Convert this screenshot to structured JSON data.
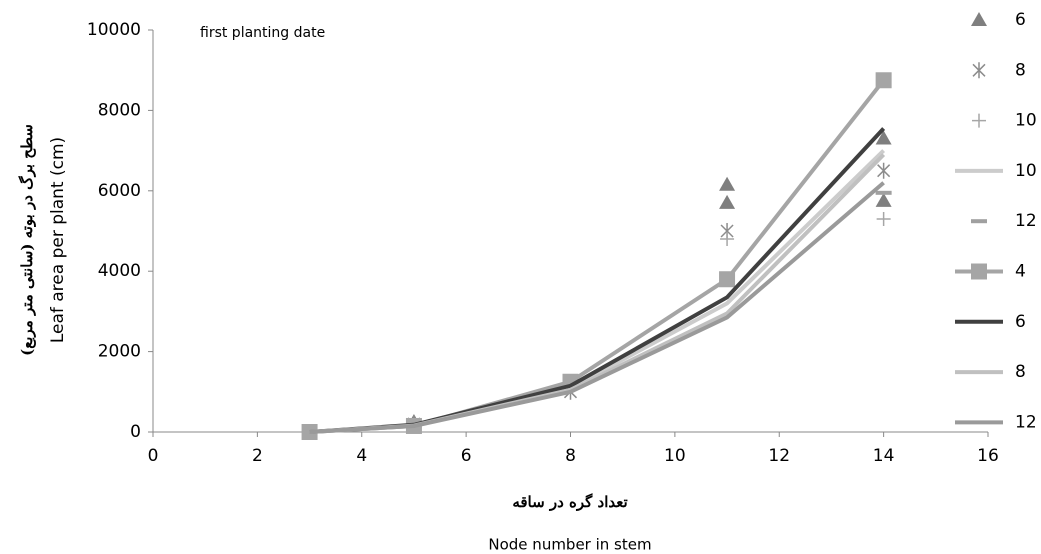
{
  "chart_data": {
    "type": "line",
    "annotation": "first planting date",
    "y_label": "Leaf area per plant (cm)",
    "y_label_fa": "سطح برگ در بوته (سانتی متر مربع)",
    "x_label_fa": "تعداد گره در ساقه",
    "x_label": "Node number in stem",
    "xlim": [
      0,
      16
    ],
    "xticks": [
      0,
      2,
      4,
      6,
      8,
      10,
      12,
      14,
      16
    ],
    "ylim": [
      0,
      10000
    ],
    "yticks": [
      0,
      2000,
      4000,
      6000,
      8000,
      10000
    ],
    "grid": false,
    "legend": "right",
    "series": [
      {
        "name": "6",
        "color": "#7f7f7f",
        "marker": "triangle",
        "line": false,
        "x": [
          5,
          11,
          11,
          14,
          14
        ],
        "values": [
          250,
          6150,
          5700,
          7300,
          5750
        ]
      },
      {
        "name": "8",
        "color": "#8c8c8c",
        "marker": "asterisk",
        "line": false,
        "x": [
          5,
          8,
          11,
          14
        ],
        "values": [
          200,
          1000,
          5000,
          6500
        ]
      },
      {
        "name": "10",
        "color": "#a6a6a6",
        "marker": "plus",
        "line": false,
        "x": [
          11,
          14
        ],
        "values": [
          4800,
          5300
        ]
      },
      {
        "name": "10",
        "color": "#cccccc",
        "marker": "none",
        "line": true,
        "x": [
          3,
          5,
          8,
          11,
          14
        ],
        "values": [
          0,
          150,
          1100,
          3200,
          7000
        ]
      },
      {
        "name": "12",
        "color": "#a0a0a0",
        "marker": "dash",
        "line": false,
        "x": [
          14
        ],
        "values": [
          5950
        ]
      },
      {
        "name": "4",
        "color": "#a5a5a5",
        "marker": "square",
        "line": true,
        "x": [
          3,
          5,
          8,
          11,
          14
        ],
        "values": [
          0,
          150,
          1250,
          3800,
          8750
        ]
      },
      {
        "name": "6",
        "color": "#404040",
        "marker": "none",
        "line": true,
        "x": [
          3,
          5,
          8,
          11,
          14
        ],
        "values": [
          0,
          180,
          1150,
          3350,
          7550
        ]
      },
      {
        "name": "8",
        "color": "#c0c0c0",
        "marker": "none",
        "line": true,
        "x": [
          3,
          5,
          8,
          11,
          14
        ],
        "values": [
          0,
          160,
          1050,
          2950,
          6900
        ]
      },
      {
        "name": "12",
        "color": "#9a9a9a",
        "marker": "none",
        "line": true,
        "x": [
          3,
          5,
          8,
          11,
          14
        ],
        "values": [
          0,
          150,
          1000,
          2850,
          6200
        ]
      }
    ]
  }
}
